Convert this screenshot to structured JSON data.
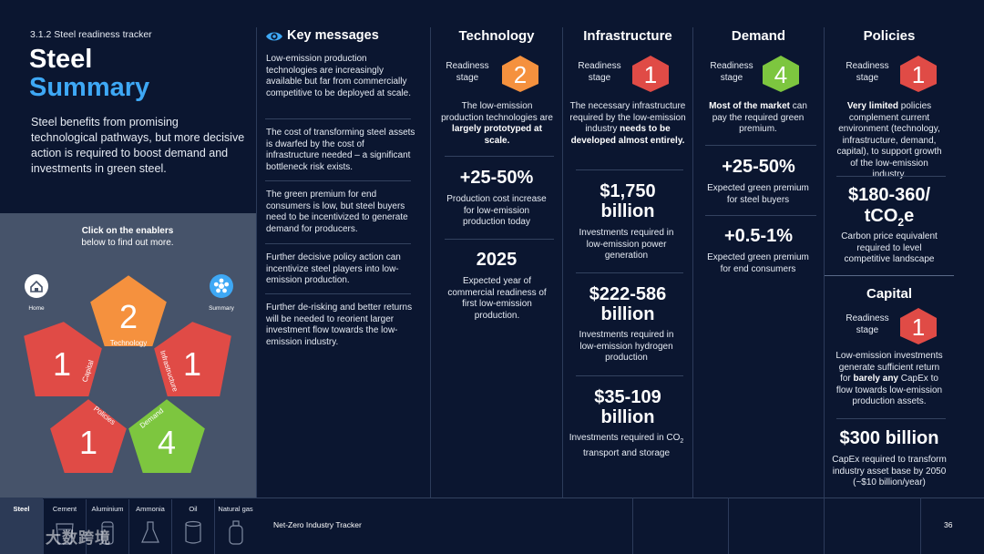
{
  "header": {
    "section": "3.1.2  Steel readiness tracker",
    "title_line1": "Steel",
    "title_line2": "Summary",
    "intro": "Steel benefits from promising technological pathways, but more decisive action is required to boost demand and investments in green steel."
  },
  "enablers": {
    "prompt_bold": "Click on the enablers",
    "prompt_rest": "below to find out more.",
    "home_label": "Home",
    "summary_label": "Summary",
    "pentagons": [
      {
        "label": "Technology",
        "score": "2",
        "color": "#f5913e"
      },
      {
        "label": "Infrastructure",
        "score": "1",
        "color": "#e04b46"
      },
      {
        "label": "Demand",
        "score": "4",
        "color": "#7dc63f"
      },
      {
        "label": "Policies",
        "score": "1",
        "color": "#e04b46"
      },
      {
        "label": "Capital",
        "score": "1",
        "color": "#e04b46"
      }
    ]
  },
  "key_messages": {
    "title": "Key messages",
    "items": [
      "Low-emission production technologies are increasingly available but far from commercially competitive to be deployed at scale.",
      "The cost of transforming steel assets is dwarfed by the cost of infrastructure needed – a significant bottleneck risk exists.",
      "The green premium for end consumers is low, but steel buyers need to be incentivized to generate demand for producers.",
      "Further decisive policy action can incentivize steel players into low-emission production.",
      "Further de-risking and better returns will be needed to reorient larger investment flow towards the low-emission industry."
    ]
  },
  "readiness_label": "Readiness stage",
  "technology": {
    "title": "Technology",
    "stage": "2",
    "color": "#f5913e",
    "text_pre": "The low-emission production technologies are ",
    "text_bold": "largely prototyped at scale.",
    "stat1_value": "+25-50%",
    "stat1_desc": "Production cost increase for low-emission production today",
    "stat2_value": "2025",
    "stat2_desc": "Expected year of commercial readiness of first low-emission production."
  },
  "infrastructure": {
    "title": "Infrastructure",
    "stage": "1",
    "color": "#e04b46",
    "text_pre": "The necessary infrastructure required by the low-emission industry ",
    "text_bold": "needs to be developed almost entirely.",
    "stat1_value": "$1,750 billion",
    "stat1_desc": "Investments required in low-emission power generation",
    "stat2_value": "$222-586 billion",
    "stat2_desc": "Investments required in low-emission hydrogen production",
    "stat3_value": "$35-109 billion",
    "stat3_desc_pre": "Investments required in CO",
    "stat3_desc_sub": "2",
    "stat3_desc_post": " transport and storage"
  },
  "demand": {
    "title": "Demand",
    "stage": "4",
    "color": "#7dc63f",
    "text_bold": "Most of the market",
    "text_post": " can pay the required green premium.",
    "stat1_value": "+25-50%",
    "stat1_desc": "Expected green premium for steel buyers",
    "stat2_value": "+0.5-1%",
    "stat2_desc": "Expected green premium for end consumers"
  },
  "policies": {
    "title": "Policies",
    "stage": "1",
    "color": "#e04b46",
    "text_bold": "Very limited",
    "text_post": " policies complement current environment (technology, infrastructure, demand, capital), to support growth of the low-emission industry.",
    "stat1_value_line1": "$180-360/",
    "stat1_value_co": "tCO",
    "stat1_value_sub": "2",
    "stat1_value_e": "e",
    "stat1_desc": "Carbon price equivalent required to level competitive landscape"
  },
  "capital": {
    "title": "Capital",
    "stage": "1",
    "color": "#e04b46",
    "text_pre": "Low-emission investments generate sufficient return for ",
    "text_bold": "barely any",
    "text_post": " CapEx to flow towards low-emission production assets.",
    "stat1_value": "$300 billion",
    "stat1_desc": "CapEx required to transform industry asset base by 2050 (~$10 billion/year)"
  },
  "footer": {
    "tabs": [
      "Steel",
      "Cement",
      "Aluminium",
      "Ammonia",
      "Oil",
      "Natural gas"
    ],
    "tracker_name": "Net-Zero Industry Tracker",
    "page_number": "36",
    "watermark": "大数跨境"
  }
}
